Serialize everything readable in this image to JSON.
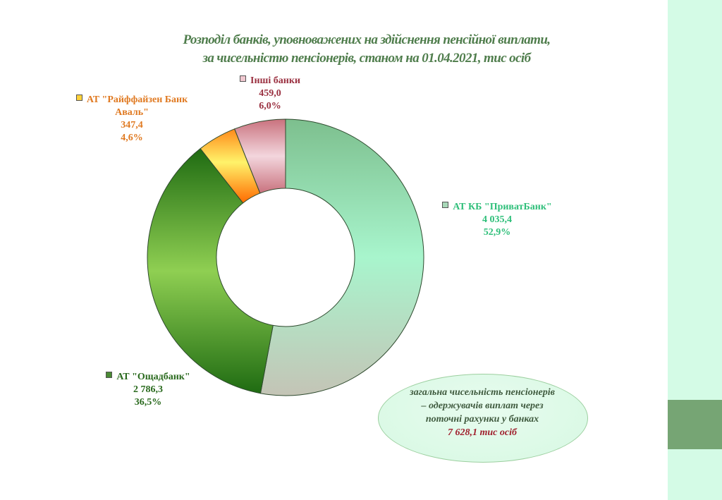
{
  "title": {
    "line1": "Розподіл банків, уповноважених на здійснення пенсійної виплати,",
    "line2": "за чисельністю пенсіонерів, станом на 01.04.2021, тис осіб"
  },
  "labels": {
    "privat": {
      "name": "АТ КБ \"ПриватБанк\"",
      "value": "4 035,4",
      "pct": "52,9%"
    },
    "oschad": {
      "name": "АТ \"Ощадбанк\"",
      "value": "2 786,3",
      "pct": "36,5%"
    },
    "raiff": {
      "name1": "АТ \"Райффайзен Банк",
      "name2": "Аваль\"",
      "value": "347,4",
      "pct": "4,6%"
    },
    "other": {
      "name": "Інші банки",
      "value": "459,0",
      "pct": "6,0%"
    }
  },
  "summary": {
    "line1": "загальна чисельність  пенсіонерів",
    "line2": "– одержувачів виплат через",
    "line3": "поточні рахунки у банках",
    "total": "7  628,1 тис осіб"
  },
  "colors": {
    "privat": "#a8f5cd",
    "oschad": "#8fcf52",
    "raiff": "#fff36a",
    "other": "#f3d6dd",
    "title": "#4f7d4c",
    "side_panel": "#d4fbe6",
    "side_band": "#76a574"
  },
  "chart_data": {
    "type": "pie",
    "variant": "donut",
    "title": "Розподіл банків, уповноважених на здійснення пенсійної виплати, за чисельністю пенсіонерів, станом на 01.04.2021, тис осіб",
    "unit": "тис осіб",
    "categories": [
      "АТ КБ \"ПриватБанк\"",
      "АТ \"Ощадбанк\"",
      "АТ \"Райффайзен Банк Аваль\"",
      "Інші банки"
    ],
    "values": [
      4035.4,
      2786.3,
      347.4,
      459.0
    ],
    "percentages": [
      52.9,
      36.5,
      4.6,
      6.0
    ],
    "total": 7628.1,
    "start_angle": "12 o'clock, clockwise",
    "legend_position": "data labels beside slices"
  }
}
